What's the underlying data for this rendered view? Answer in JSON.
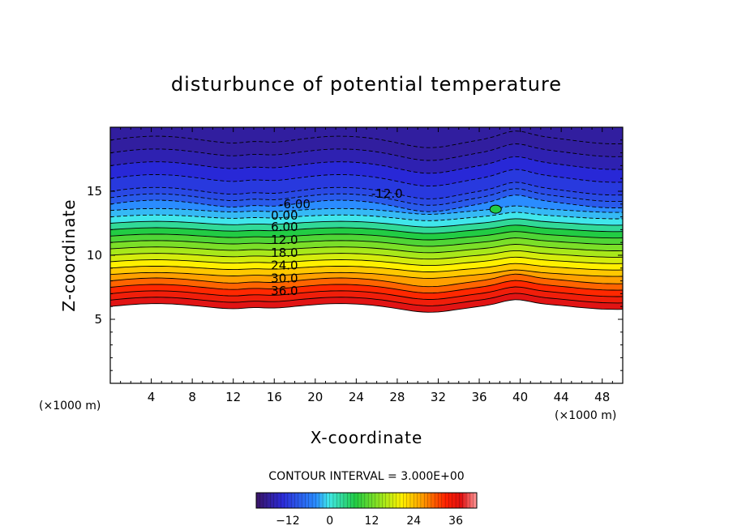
{
  "chart_data": {
    "type": "heatmap",
    "title": "disturbunce of potential temperature",
    "xlabel": "X-coordinate",
    "ylabel": "Z-coordinate",
    "x_unit": "(×1000 m)",
    "z_unit": "(×1000 m)",
    "xlim": [
      0,
      50
    ],
    "ylim": [
      0,
      20
    ],
    "x_ticks": [
      4,
      8,
      12,
      16,
      20,
      24,
      28,
      32,
      36,
      40,
      44,
      48
    ],
    "y_ticks": [
      5,
      10,
      15
    ],
    "contour_interval_text": "CONTOUR INTERVAL = 3.000E+00",
    "contour_labels": [
      {
        "text": "-12.0",
        "x": 27,
        "z": 14.8
      },
      {
        "text": "-6.00",
        "x": 18,
        "z": 14.0
      },
      {
        "text": "0.00",
        "x": 17,
        "z": 13.1
      },
      {
        "text": "6.00",
        "x": 17,
        "z": 12.2
      },
      {
        "text": "12.0",
        "x": 17,
        "z": 11.2
      },
      {
        "text": "18.0",
        "x": 17,
        "z": 10.2
      },
      {
        "text": "24.0",
        "x": 17,
        "z": 9.2
      },
      {
        "text": "30.0",
        "x": 17,
        "z": 8.2
      },
      {
        "text": "36.0",
        "x": 17,
        "z": 7.2
      }
    ],
    "colorbar": {
      "ticks": [
        -12,
        0,
        12,
        24,
        36
      ],
      "range": [
        -21,
        42
      ]
    },
    "field_summary": {
      "levels_z": [
        6.0,
        6.5,
        7.0,
        7.5,
        8.0,
        8.5,
        9.0,
        9.5,
        10.0,
        10.5,
        11.0,
        11.5,
        12.0,
        12.5,
        13.0,
        13.5,
        14.0,
        14.5,
        15.0,
        16.0,
        17.0,
        18.0,
        19.0
      ],
      "levels_value": [
        39,
        36,
        33,
        30,
        27,
        24,
        21,
        18,
        15,
        12,
        9,
        6,
        3,
        0,
        -3,
        -6,
        -9,
        -12,
        -13,
        -14,
        -15,
        -17,
        -18
      ],
      "lower_boundary_z": 6.0
    }
  }
}
